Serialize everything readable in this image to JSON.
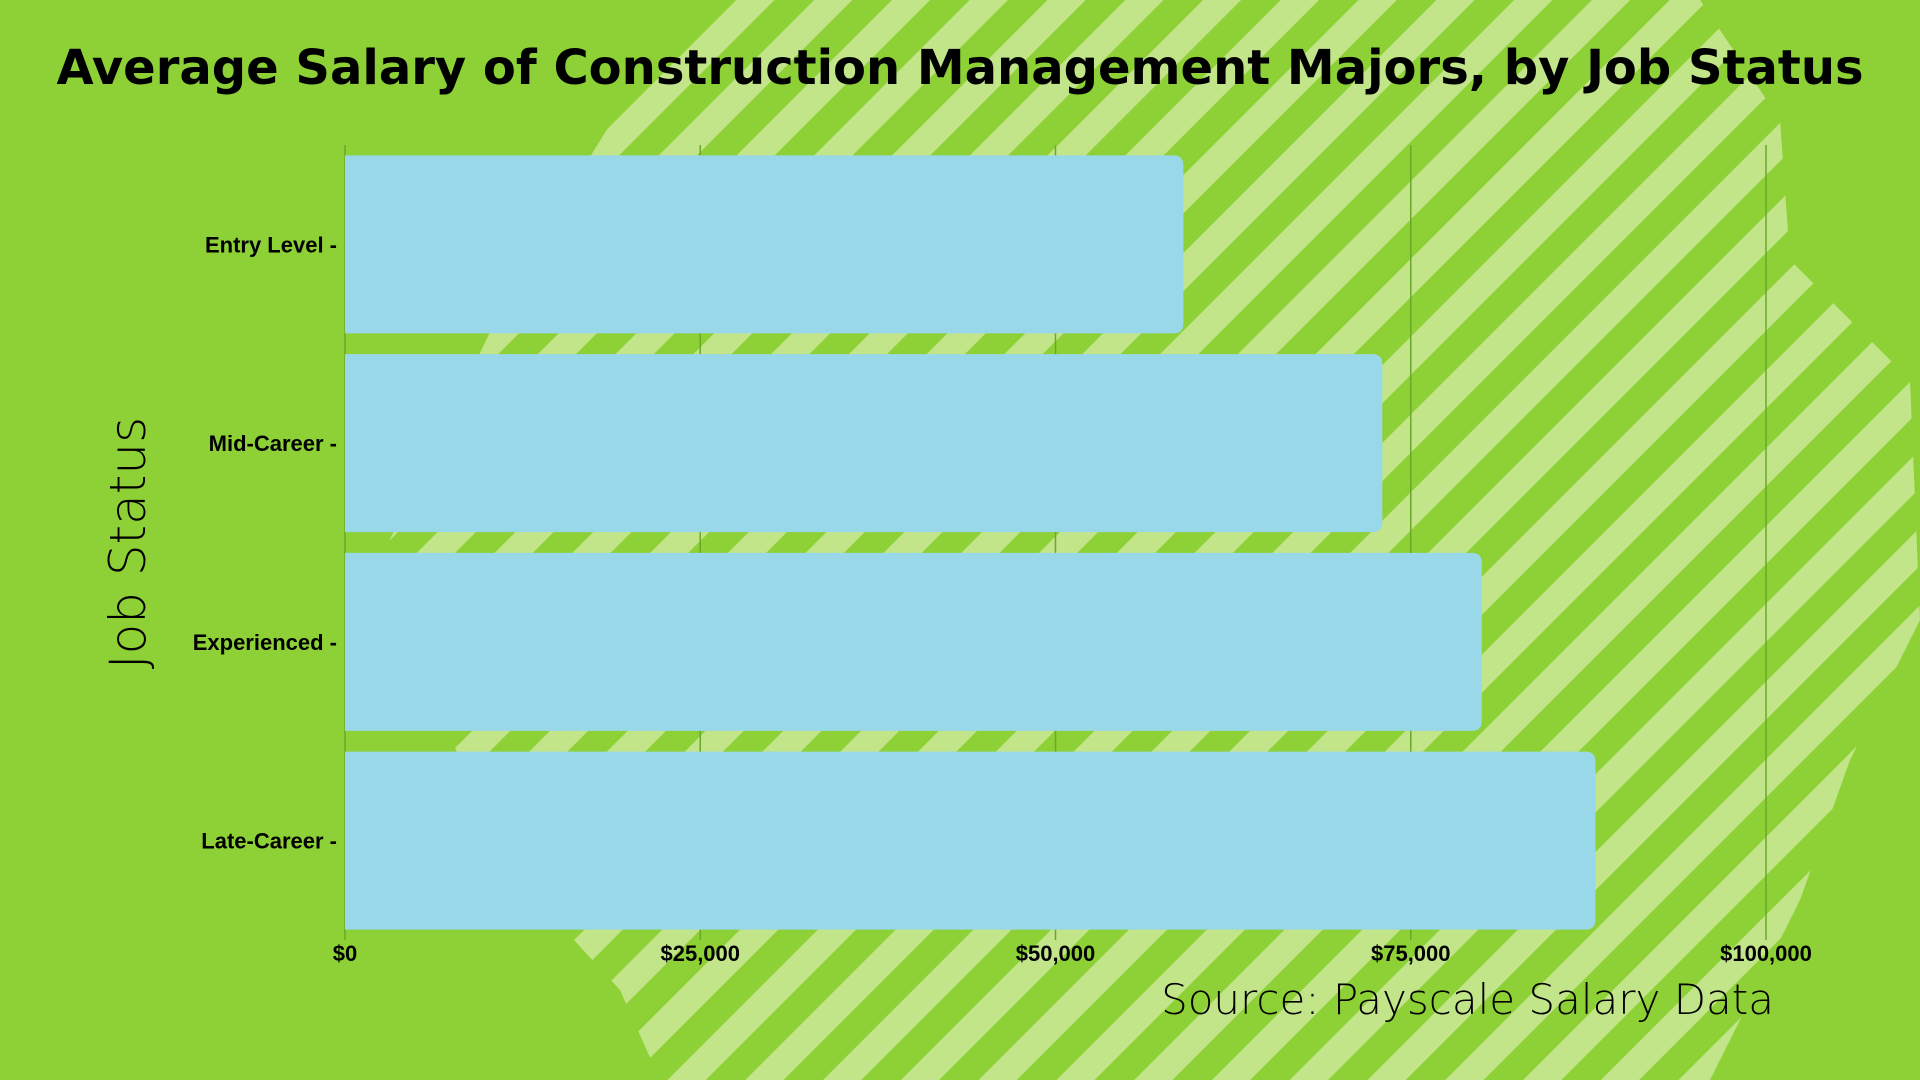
{
  "colors": {
    "background": "#8dd136",
    "stripes": "#c2e58a",
    "bar": "#99d8e8",
    "gridline": "#6aa82a",
    "text": "#000000"
  },
  "chart_data": {
    "type": "bar",
    "orientation": "horizontal",
    "title": "Average Salary of Construction Management Majors, by Job Status",
    "ylabel": "Job Status",
    "xlabel": "",
    "categories": [
      "Entry Level -",
      "Mid-Career -",
      "Experienced -",
      "Late-Career -"
    ],
    "values": [
      59000,
      73000,
      80000,
      88000
    ],
    "xlim": [
      0,
      100000
    ],
    "x_ticks": [
      0,
      25000,
      50000,
      75000,
      100000
    ],
    "x_tick_labels": [
      "$0",
      "$25,000",
      "$50,000",
      "$75,000",
      "$100,000"
    ],
    "grid": true,
    "source": "Source: Payscale Salary Data"
  }
}
